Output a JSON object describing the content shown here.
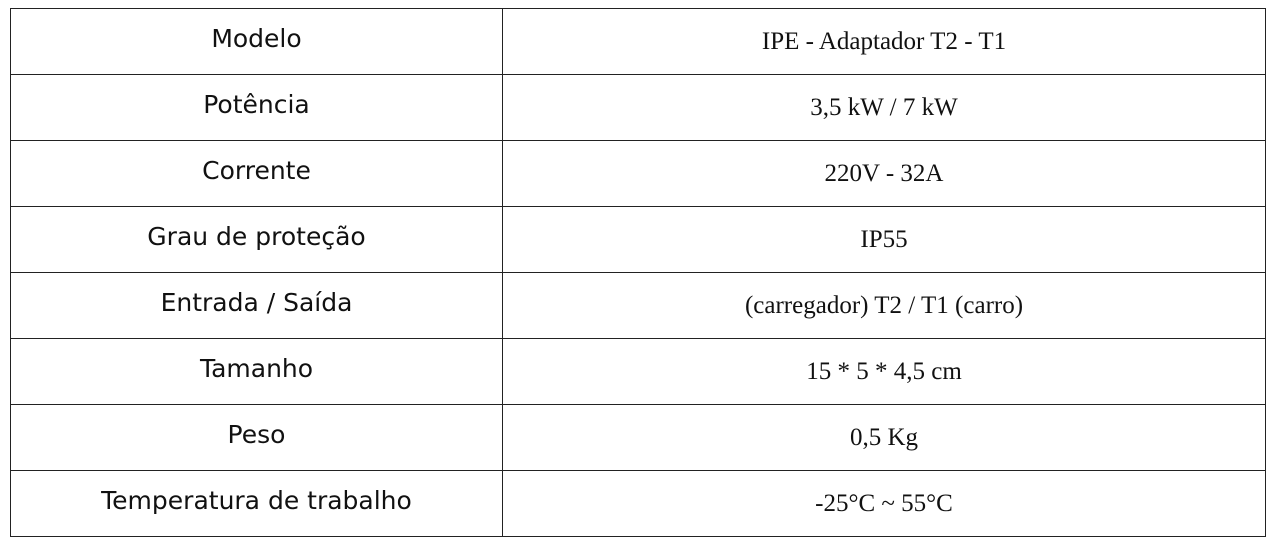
{
  "table": {
    "rows": [
      [
        "Modelo",
        "IPE - Adaptador T2 - T1"
      ],
      [
        "Potência",
        "3,5 kW / 7 kW"
      ],
      [
        "Corrente",
        "220V - 32A"
      ],
      [
        "Grau de proteção",
        "IP55"
      ],
      [
        "Entrada / Saída",
        "(carregador) T2 / T1 (carro)"
      ],
      [
        "Tamanho",
        "15 * 5 * 4,5 cm"
      ],
      [
        "Peso",
        "0,5 Kg"
      ],
      [
        "Temperatura de trabalho",
        "-25°C ~ 55°C"
      ]
    ]
  }
}
